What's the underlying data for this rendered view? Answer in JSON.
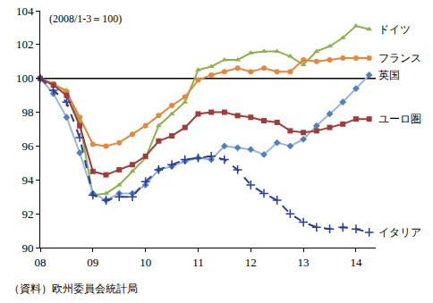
{
  "chart_data": {
    "type": "line",
    "annotations": [
      "(2008/1-3＝100)",
      "（資料）欧州委員会統計局"
    ],
    "categories": [
      "08",
      null,
      null,
      null,
      "09",
      null,
      null,
      null,
      "10",
      null,
      null,
      null,
      "11",
      null,
      null,
      null,
      "12",
      null,
      null,
      null,
      "13",
      null,
      null,
      null,
      "14",
      null
    ],
    "ylim": [
      90,
      104
    ],
    "yticks": [
      90,
      92,
      94,
      96,
      98,
      100,
      102,
      104
    ],
    "grid": false,
    "series": [
      {
        "name": "ドイツ",
        "color": "#8fb34c",
        "marker": "triangle",
        "line_style": "solid",
        "values": [
          100,
          99.6,
          99.3,
          97.4,
          93.1,
          93.2,
          93.7,
          94.5,
          95.3,
          97.2,
          97.9,
          98.6,
          100.5,
          100.7,
          101.1,
          101.1,
          101.5,
          101.6,
          101.6,
          101.3,
          100.8,
          101.6,
          101.9,
          102.4,
          103.1,
          102.9
        ]
      },
      {
        "name": "フランス",
        "color": "#e8873c",
        "marker": "circle",
        "line_style": "solid",
        "values": [
          100,
          99.7,
          99.2,
          97.7,
          96.1,
          96.0,
          96.2,
          96.7,
          97.2,
          97.8,
          98.4,
          98.9,
          99.9,
          100.2,
          100.4,
          100.6,
          100.4,
          100.6,
          100.4,
          100.4,
          101.1,
          101.0,
          101.1,
          101.2,
          101.2,
          101.2
        ]
      },
      {
        "name": "英国",
        "color": "#4f81bd",
        "marker": "diamond",
        "line_style": "solid",
        "values": [
          100,
          99.1,
          97.7,
          95.6,
          93.2,
          92.8,
          93.2,
          93.2,
          93.7,
          94.6,
          94.8,
          95.1,
          95.3,
          95.2,
          96.0,
          95.9,
          95.8,
          95.5,
          96.2,
          96.0,
          96.4,
          97.2,
          97.9,
          98.6,
          99.4,
          100.2
        ]
      },
      {
        "name": "ユーロ圏",
        "color": "#9e3d39",
        "marker": "square",
        "line_style": "solid",
        "values": [
          100,
          99.6,
          99.0,
          97.2,
          94.5,
          94.3,
          94.6,
          94.9,
          95.4,
          96.3,
          96.6,
          97.1,
          97.9,
          98.0,
          98.0,
          97.8,
          97.7,
          97.5,
          97.4,
          96.9,
          96.8,
          96.9,
          97.1,
          97.3,
          97.6,
          97.6
        ]
      },
      {
        "name": "イタリア",
        "color": "#2b3d9a",
        "marker": "cross",
        "line_style": "dashed",
        "values": [
          100,
          99.3,
          98.6,
          96.5,
          93.1,
          92.8,
          93.0,
          93.0,
          93.9,
          94.6,
          94.9,
          95.2,
          95.3,
          95.4,
          95.2,
          94.6,
          93.7,
          93.2,
          92.8,
          92.0,
          91.5,
          91.2,
          91.1,
          91.2,
          91.1,
          90.9
        ]
      }
    ]
  }
}
